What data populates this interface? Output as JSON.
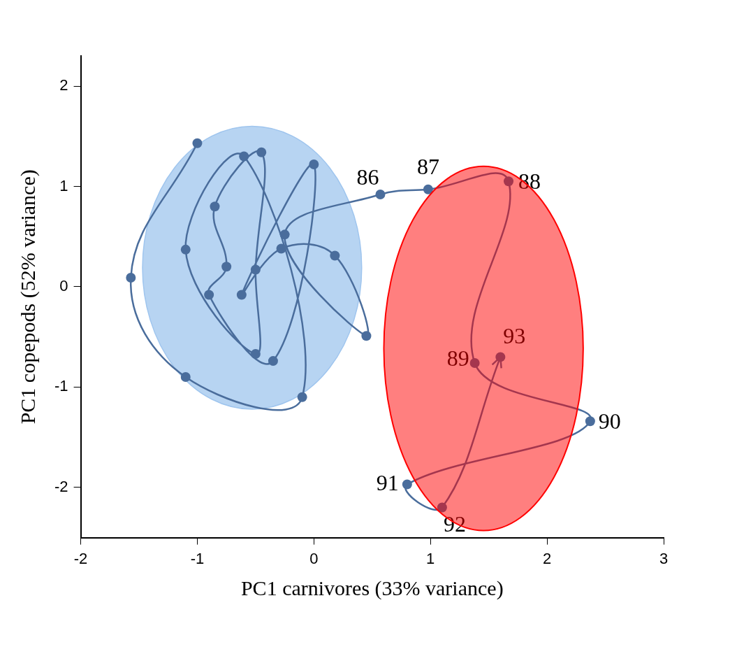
{
  "chart_data": {
    "type": "line",
    "x_label": "PC1 carnivores (33% variance)",
    "y_label": "PC1 copepods (52% variance)",
    "x": [
      -1.0,
      -1.57,
      -1.1,
      -0.1,
      -0.6,
      -1.1,
      -0.5,
      -0.5,
      -0.45,
      -0.85,
      -0.75,
      -0.9,
      -0.35,
      0.0,
      -0.62,
      -0.28,
      0.18,
      0.45,
      -0.25,
      0.57,
      0.98,
      1.67,
      1.38,
      2.37,
      0.8,
      1.1,
      1.6
    ],
    "values": [
      1.43,
      0.09,
      -0.9,
      -1.1,
      1.3,
      0.37,
      -0.67,
      0.17,
      1.34,
      0.8,
      0.2,
      -0.08,
      -0.74,
      1.22,
      -0.08,
      0.38,
      0.31,
      -0.49,
      0.52,
      0.92,
      0.97,
      1.05,
      -0.76,
      -1.34,
      -1.97,
      -2.2,
      -0.7
    ],
    "point_labels": [
      null,
      null,
      null,
      null,
      null,
      null,
      null,
      null,
      null,
      null,
      null,
      null,
      null,
      null,
      null,
      null,
      null,
      null,
      null,
      "86",
      "87",
      "88",
      "89",
      "90",
      "91",
      "92",
      "93"
    ],
    "color": "#4a6d9c",
    "marker": "circle",
    "line_style": "smooth",
    "xlim": [
      -2,
      3
    ],
    "xticks": [
      -2,
      -1,
      0,
      1,
      2,
      3
    ],
    "ylim": [
      -2.5,
      2.3
    ],
    "yticks": [
      -2,
      -1,
      0,
      1,
      2
    ],
    "grid": false,
    "ellipses": [
      {
        "x": [
          -1.47,
          0.41
        ],
        "y": [
          -1.22,
          1.6
        ],
        "color": "#9fc5ee"
      },
      {
        "x": [
          0.6,
          2.31
        ],
        "y": [
          -2.43,
          1.2
        ],
        "color": "#ff0000"
      }
    ]
  }
}
